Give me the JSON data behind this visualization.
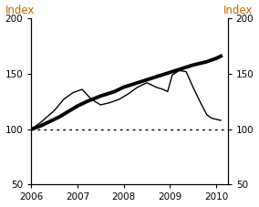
{
  "title": "",
  "xlabel": "",
  "ylabel_left": "Index",
  "ylabel_right": "Index",
  "ylim": [
    50,
    200
  ],
  "yticks": [
    50,
    100,
    150,
    200
  ],
  "xlim": [
    2006.0,
    2010.25
  ],
  "xticks": [
    2006,
    2007,
    2008,
    2009,
    2010
  ],
  "background_color": "#ffffff",
  "label_color": "#cc6600",
  "thick_line_color": "#000000",
  "thin_line_color": "#000000",
  "dotted_line_color": "#000000",
  "thick_line_x": [
    2006.0,
    2006.2,
    2006.4,
    2006.6,
    2006.8,
    2007.0,
    2007.2,
    2007.5,
    2007.8,
    2008.0,
    2008.3,
    2008.6,
    2008.9,
    2009.2,
    2009.5,
    2009.8,
    2010.0,
    2010.1
  ],
  "thick_line_y": [
    100,
    103,
    107,
    111,
    116,
    121,
    125,
    130,
    134,
    138,
    142,
    146,
    150,
    154,
    158,
    161,
    164,
    166
  ],
  "thin_line_x": [
    2006.0,
    2006.2,
    2006.5,
    2006.7,
    2006.9,
    2007.1,
    2007.3,
    2007.5,
    2007.7,
    2007.9,
    2008.1,
    2008.3,
    2008.5,
    2008.7,
    2008.85,
    2008.95,
    2009.05,
    2009.2,
    2009.35,
    2009.5,
    2009.65,
    2009.8,
    2009.9,
    2010.1
  ],
  "thin_line_y": [
    100,
    106,
    117,
    127,
    133,
    136,
    127,
    122,
    124,
    127,
    132,
    138,
    142,
    138,
    136,
    134,
    149,
    153,
    152,
    138,
    125,
    113,
    110,
    108
  ],
  "dotted_line_y": 100,
  "thick_linewidth": 2.8,
  "thin_linewidth": 1.0,
  "tick_fontsize": 7.5,
  "label_fontsize": 8.5
}
